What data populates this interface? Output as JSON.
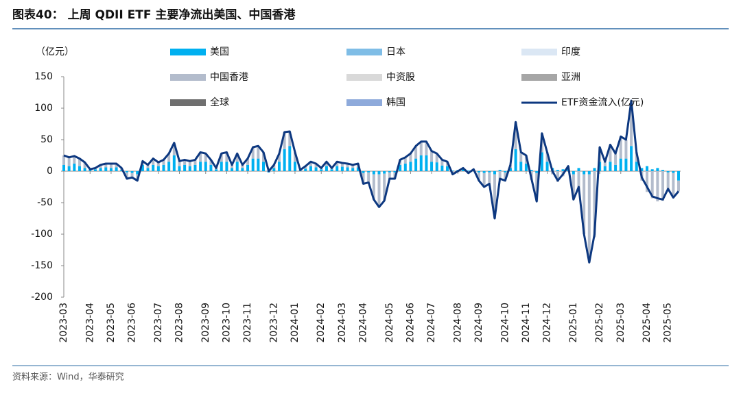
{
  "chart_data": {
    "type": "bar",
    "title": "图表40：  上周 QDII ETF 主要净流出美国、中国香港",
    "y_label": "（亿元）",
    "source": "资料来源：Wind，华泰研究",
    "ylim": [
      -200,
      150
    ],
    "yticks": [
      -200,
      -150,
      -100,
      -50,
      0,
      50,
      100,
      150
    ],
    "categories": [
      "2023-03",
      null,
      null,
      null,
      null,
      "2023-04",
      null,
      null,
      null,
      "2023-05",
      null,
      null,
      null,
      "2023-06",
      null,
      null,
      null,
      null,
      "2023-07",
      null,
      null,
      null,
      "2023-08",
      null,
      null,
      null,
      null,
      "2023-09",
      null,
      null,
      null,
      "2023-10",
      null,
      null,
      null,
      "2023-11",
      null,
      null,
      null,
      null,
      "2023-12",
      null,
      null,
      null,
      "2024-01",
      null,
      null,
      null,
      null,
      "2024-02",
      null,
      null,
      null,
      "2024-03",
      null,
      null,
      null,
      "2024-04",
      null,
      null,
      null,
      null,
      "2024-05",
      null,
      null,
      null,
      "2024-06",
      null,
      null,
      null,
      "2024-07",
      null,
      null,
      null,
      null,
      "2024-08",
      null,
      null,
      null,
      "2024-09",
      null,
      null,
      null,
      null,
      "2024-10",
      null,
      null,
      null,
      "2024-11",
      null,
      null,
      null,
      "2024-12",
      null,
      null,
      null,
      null,
      "2025-01",
      null,
      null,
      null,
      null,
      "2025-02",
      null,
      null,
      null,
      "2025-03",
      null,
      null,
      null,
      null,
      "2025-04",
      null,
      null,
      null,
      "2025-05",
      null,
      null
    ],
    "series": [
      {
        "name": "美国",
        "color": "#00b0f0",
        "values": [
          10,
          8,
          12,
          8,
          5,
          2,
          3,
          5,
          6,
          5,
          6,
          2,
          -2,
          -3,
          -5,
          10,
          5,
          10,
          8,
          10,
          15,
          25,
          8,
          10,
          8,
          10,
          15,
          15,
          10,
          3,
          15,
          15,
          5,
          15,
          5,
          10,
          20,
          20,
          15,
          -2,
          5,
          15,
          35,
          40,
          15,
          1,
          4,
          8,
          6,
          3,
          8,
          3,
          8,
          7,
          6,
          5,
          6,
          -3,
          -2,
          -5,
          -5,
          -4,
          -2,
          -2,
          10,
          12,
          15,
          20,
          25,
          25,
          15,
          14,
          9,
          8,
          1,
          2,
          3,
          1,
          2,
          -2,
          -3,
          -2,
          -5,
          2,
          -2,
          5,
          35,
          15,
          12,
          2,
          -3,
          30,
          15,
          5,
          2,
          3,
          5,
          -5,
          5,
          -5,
          -5,
          5,
          15,
          8,
          15,
          10,
          20,
          20,
          40,
          15,
          5,
          8,
          3,
          5,
          2,
          -2,
          -3,
          -15
        ]
      },
      {
        "name": "日本",
        "color": "#7fbde6",
        "values": [
          0,
          0,
          0,
          0,
          0,
          0,
          0,
          0,
          0,
          0,
          0,
          0,
          0,
          0,
          0,
          0,
          0,
          0,
          0,
          0,
          0,
          0,
          0,
          0,
          0,
          0,
          0,
          0,
          0,
          0,
          0,
          0,
          0,
          0,
          0,
          0,
          0,
          0,
          0,
          0,
          0,
          0,
          0,
          0,
          0,
          0,
          0,
          0,
          0,
          0,
          0,
          0,
          0,
          0,
          0,
          0,
          0,
          0,
          0,
          0,
          0,
          0,
          0,
          0,
          0,
          0,
          0,
          0,
          0,
          0,
          0,
          0,
          0,
          0,
          0,
          0,
          0,
          0,
          0,
          0,
          0,
          0,
          0,
          0,
          0,
          0,
          0,
          0,
          0,
          0,
          0,
          0,
          0,
          0,
          0,
          0,
          0,
          0,
          0,
          0,
          0,
          0,
          0,
          0,
          0,
          0,
          0,
          0,
          0,
          0,
          0,
          0,
          0,
          0,
          0,
          0,
          0,
          0
        ]
      },
      {
        "name": "印度",
        "color": "#dbe7f4",
        "values": [
          0,
          0,
          0,
          0,
          0,
          0,
          0,
          0,
          0,
          0,
          0,
          0,
          0,
          0,
          0,
          0,
          0,
          0,
          0,
          0,
          0,
          0,
          0,
          0,
          0,
          0,
          0,
          0,
          0,
          0,
          0,
          0,
          0,
          0,
          0,
          0,
          0,
          0,
          0,
          0,
          0,
          0,
          0,
          0,
          0,
          0,
          0,
          0,
          0,
          0,
          0,
          0,
          0,
          0,
          0,
          0,
          0,
          0,
          0,
          0,
          0,
          0,
          0,
          0,
          0,
          0,
          0,
          0,
          0,
          0,
          0,
          0,
          0,
          0,
          0,
          0,
          0,
          0,
          0,
          0,
          0,
          0,
          0,
          0,
          0,
          0,
          0,
          0,
          0,
          0,
          0,
          0,
          0,
          0,
          0,
          0,
          0,
          0,
          0,
          0,
          0,
          0,
          0,
          0,
          0,
          0,
          0,
          0,
          0,
          0,
          0,
          0,
          0,
          0,
          0,
          0,
          0,
          0
        ]
      },
      {
        "name": "中国香港",
        "color": "#b3bccc",
        "values": [
          15,
          14,
          12,
          12,
          9,
          1,
          2,
          5,
          6,
          7,
          6,
          3,
          -10,
          -7,
          -10,
          6,
          5,
          10,
          6,
          8,
          13,
          20,
          8,
          8,
          8,
          8,
          15,
          13,
          8,
          2,
          13,
          15,
          5,
          13,
          5,
          10,
          18,
          20,
          15,
          2,
          5,
          13,
          27,
          23,
          15,
          1,
          4,
          7,
          6,
          2,
          7,
          2,
          7,
          6,
          6,
          5,
          6,
          -17,
          -16,
          -40,
          -52,
          -43,
          -10,
          -10,
          8,
          10,
          13,
          20,
          22,
          22,
          17,
          14,
          9,
          7,
          -6,
          -2,
          2,
          -4,
          1,
          -13,
          -22,
          -18,
          -70,
          -14,
          -13,
          5,
          43,
          15,
          13,
          -14,
          -45,
          30,
          15,
          -5,
          -17,
          -8,
          3,
          -40,
          -30,
          -95,
          -140,
          -105,
          23,
          7,
          27,
          18,
          35,
          30,
          72,
          15,
          -15,
          -33,
          -43,
          -48,
          -47,
          -26,
          -39,
          -17
        ]
      },
      {
        "name": "中资股",
        "color": "#d9d9d9",
        "values": [
          0,
          0,
          0,
          0,
          0,
          0,
          0,
          0,
          0,
          0,
          0,
          0,
          0,
          0,
          0,
          0,
          0,
          0,
          0,
          0,
          0,
          0,
          0,
          0,
          0,
          0,
          0,
          0,
          0,
          0,
          0,
          0,
          0,
          0,
          0,
          0,
          0,
          0,
          0,
          0,
          0,
          0,
          0,
          0,
          0,
          0,
          0,
          0,
          0,
          0,
          0,
          0,
          0,
          0,
          0,
          0,
          0,
          0,
          0,
          0,
          0,
          0,
          0,
          0,
          0,
          0,
          0,
          0,
          0,
          0,
          0,
          0,
          0,
          0,
          0,
          0,
          0,
          0,
          0,
          0,
          0,
          0,
          0,
          0,
          0,
          0,
          0,
          0,
          0,
          0,
          0,
          0,
          0,
          0,
          0,
          0,
          0,
          0,
          0,
          0,
          0,
          0,
          0,
          0,
          0,
          0,
          0,
          0,
          0,
          0,
          0,
          0,
          0,
          0,
          0,
          0,
          0,
          0
        ]
      },
      {
        "name": "亚洲",
        "color": "#a6a6a6",
        "values": [
          0,
          0,
          0,
          0,
          0,
          0,
          0,
          0,
          0,
          0,
          0,
          0,
          0,
          0,
          0,
          0,
          0,
          0,
          0,
          0,
          0,
          0,
          0,
          0,
          0,
          0,
          0,
          0,
          0,
          0,
          0,
          0,
          0,
          0,
          0,
          0,
          0,
          0,
          0,
          0,
          0,
          0,
          0,
          0,
          0,
          0,
          0,
          0,
          0,
          0,
          0,
          0,
          0,
          0,
          0,
          0,
          0,
          0,
          0,
          0,
          0,
          0,
          0,
          0,
          0,
          0,
          0,
          0,
          0,
          0,
          0,
          0,
          0,
          0,
          0,
          0,
          0,
          0,
          0,
          0,
          0,
          0,
          0,
          0,
          0,
          0,
          0,
          0,
          0,
          0,
          0,
          0,
          0,
          0,
          0,
          0,
          0,
          0,
          0,
          0,
          0,
          0,
          0,
          0,
          0,
          0,
          0,
          0,
          0,
          0,
          0,
          0,
          0,
          0,
          0,
          0,
          0,
          0
        ]
      },
      {
        "name": "全球",
        "color": "#6f6f6f",
        "values": [
          0,
          0,
          0,
          0,
          0,
          0,
          0,
          0,
          0,
          0,
          0,
          0,
          0,
          0,
          0,
          0,
          0,
          0,
          0,
          0,
          0,
          0,
          0,
          0,
          0,
          0,
          0,
          0,
          0,
          0,
          0,
          0,
          0,
          0,
          0,
          0,
          0,
          0,
          0,
          0,
          0,
          0,
          0,
          0,
          0,
          0,
          0,
          0,
          0,
          0,
          0,
          0,
          0,
          0,
          0,
          0,
          0,
          0,
          0,
          0,
          0,
          0,
          0,
          0,
          0,
          0,
          0,
          0,
          0,
          0,
          0,
          0,
          0,
          0,
          0,
          0,
          0,
          0,
          0,
          0,
          0,
          0,
          0,
          0,
          0,
          0,
          0,
          0,
          0,
          0,
          0,
          0,
          0,
          0,
          0,
          0,
          0,
          0,
          0,
          0,
          0,
          0,
          0,
          0,
          0,
          0,
          0,
          0,
          0,
          0,
          0,
          0,
          0,
          0,
          0,
          0,
          0,
          0
        ]
      },
      {
        "name": "韩国",
        "color": "#8eaadb",
        "values": [
          0,
          0,
          0,
          0,
          0,
          0,
          0,
          0,
          0,
          0,
          0,
          0,
          0,
          0,
          0,
          0,
          0,
          0,
          0,
          0,
          0,
          0,
          0,
          0,
          0,
          0,
          0,
          0,
          0,
          0,
          0,
          0,
          0,
          0,
          0,
          0,
          0,
          0,
          0,
          0,
          0,
          0,
          0,
          0,
          0,
          0,
          0,
          0,
          0,
          0,
          0,
          0,
          0,
          0,
          0,
          0,
          0,
          0,
          0,
          0,
          0,
          0,
          0,
          0,
          0,
          0,
          0,
          0,
          0,
          0,
          0,
          0,
          0,
          0,
          0,
          0,
          0,
          0,
          0,
          0,
          0,
          0,
          0,
          0,
          0,
          0,
          0,
          0,
          0,
          0,
          0,
          0,
          0,
          0,
          0,
          0,
          0,
          0,
          0,
          0,
          0,
          0,
          0,
          0,
          0,
          0,
          0,
          0,
          0,
          0,
          0,
          0,
          0,
          0,
          0,
          0,
          0,
          0
        ]
      },
      {
        "name": "ETF资金流入(亿元)",
        "type": "line",
        "color": "#0d3880",
        "values": [
          25,
          22,
          24,
          20,
          14,
          3,
          5,
          10,
          12,
          12,
          12,
          5,
          -12,
          -10,
          -15,
          16,
          10,
          20,
          14,
          18,
          28,
          45,
          16,
          18,
          16,
          18,
          30,
          28,
          18,
          5,
          28,
          30,
          10,
          28,
          10,
          20,
          38,
          40,
          30,
          0,
          10,
          28,
          62,
          63,
          30,
          2,
          8,
          15,
          12,
          5,
          15,
          5,
          15,
          13,
          12,
          10,
          12,
          -20,
          -18,
          -45,
          -57,
          -47,
          -12,
          -12,
          18,
          22,
          28,
          40,
          47,
          47,
          32,
          28,
          18,
          15,
          -5,
          0,
          5,
          -3,
          3,
          -15,
          -25,
          -20,
          -75,
          -12,
          -15,
          10,
          78,
          30,
          25,
          -12,
          -48,
          60,
          30,
          0,
          -15,
          -5,
          8,
          -45,
          -25,
          -100,
          -145,
          -100,
          38,
          15,
          42,
          28,
          55,
          50,
          112,
          30,
          -10,
          -25,
          -40,
          -43,
          -45,
          -28,
          -42,
          -32
        ]
      }
    ]
  }
}
